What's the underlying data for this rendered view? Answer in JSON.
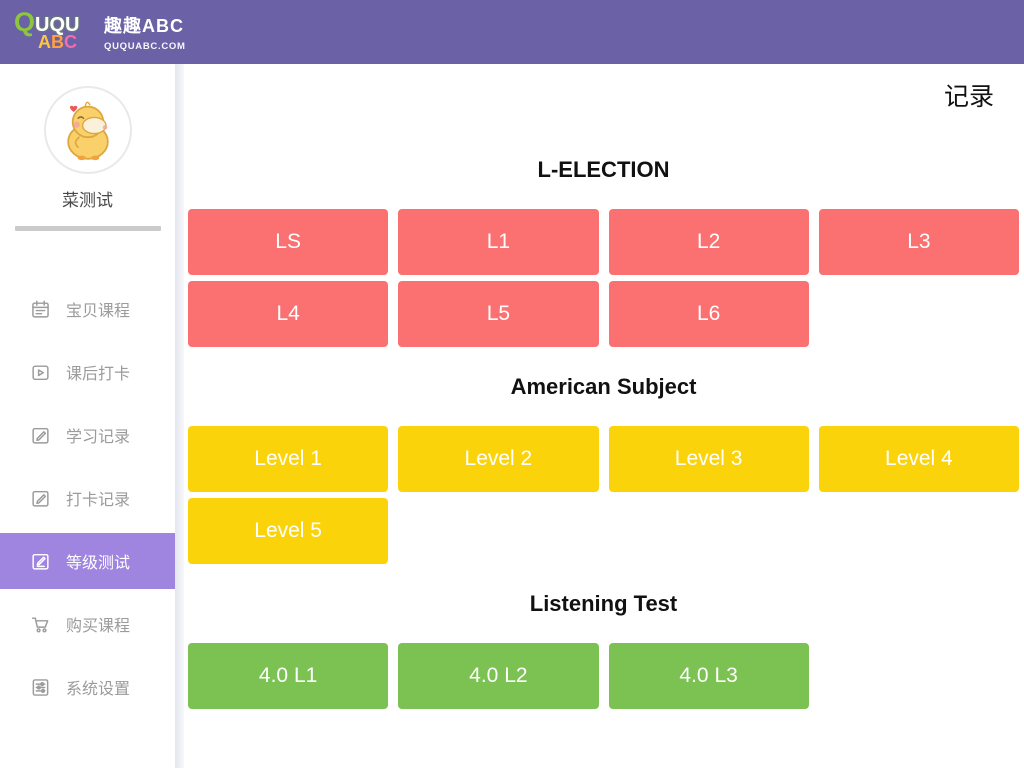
{
  "header": {
    "logo_line1": "QUQU",
    "logo_line2": "ABC",
    "brand_cn": "趣趣ABC",
    "brand_url": "QUQUABC.COM",
    "bg_color": "#6B61A6"
  },
  "sidebar": {
    "username": "菜测试",
    "active_color": "#9F84E0",
    "items": [
      {
        "key": "baby-courses",
        "label": "宝贝课程",
        "icon": "calendar-icon",
        "active": false
      },
      {
        "key": "after-class-checkin",
        "label": "课后打卡",
        "icon": "video-icon",
        "active": false
      },
      {
        "key": "study-records",
        "label": "学习记录",
        "icon": "edit-icon",
        "active": false
      },
      {
        "key": "checkin-records",
        "label": "打卡记录",
        "icon": "edit-icon",
        "active": false
      },
      {
        "key": "level-test",
        "label": "等级测试",
        "icon": "test-icon",
        "active": true
      },
      {
        "key": "buy-courses",
        "label": "购买课程",
        "icon": "cart-icon",
        "active": false
      },
      {
        "key": "system-settings",
        "label": "系统设置",
        "icon": "settings-icon",
        "active": false
      }
    ]
  },
  "main": {
    "records_label": "记录",
    "sections": [
      {
        "key": "l-election",
        "title": "L-ELECTION",
        "button_color": "#FB7171",
        "buttons": [
          "LS",
          "L1",
          "L2",
          "L3",
          "L4",
          "L5",
          "L6"
        ]
      },
      {
        "key": "american-subject",
        "title": "American Subject",
        "button_color": "#FBD30B",
        "buttons": [
          "Level 1",
          "Level 2",
          "Level 3",
          "Level 4",
          "Level 5"
        ]
      },
      {
        "key": "listening-test",
        "title": "Listening Test",
        "button_color": "#7BC253",
        "buttons": [
          "4.0 L1",
          "4.0 L2",
          "4.0 L3"
        ]
      }
    ]
  }
}
